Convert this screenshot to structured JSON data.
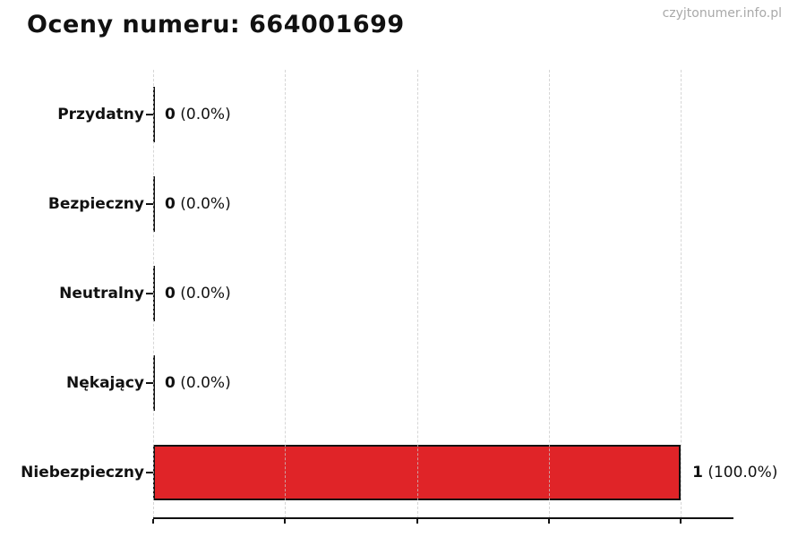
{
  "header": {
    "title": "Oceny numeru: 664001699",
    "watermark": "czyjtonumer.info.pl"
  },
  "chart_data": {
    "type": "bar",
    "orientation": "horizontal",
    "title": "Oceny numeru: 664001699",
    "categories": [
      "Przydatny",
      "Bezpieczny",
      "Neutralny",
      "Nękający",
      "Niebezpieczny"
    ],
    "values": [
      0,
      0,
      0,
      0,
      1
    ],
    "count_labels": [
      "0",
      "0",
      "0",
      "0",
      "1"
    ],
    "percent_labels": [
      "(0.0%)",
      "(0.0%)",
      "(0.0%)",
      "(0.0%)",
      "(100.0%)"
    ],
    "xlim": [
      0,
      1.1
    ],
    "gridline_values": [
      0,
      0.25,
      0.5,
      0.75,
      1.0
    ],
    "grid": "vertical-dashed",
    "legend": "none",
    "xlabel": "",
    "ylabel": "",
    "x_tick_labels": [],
    "bar_color": "#e02428",
    "bar_edge_color": "#111111",
    "background": "#ffffff"
  }
}
